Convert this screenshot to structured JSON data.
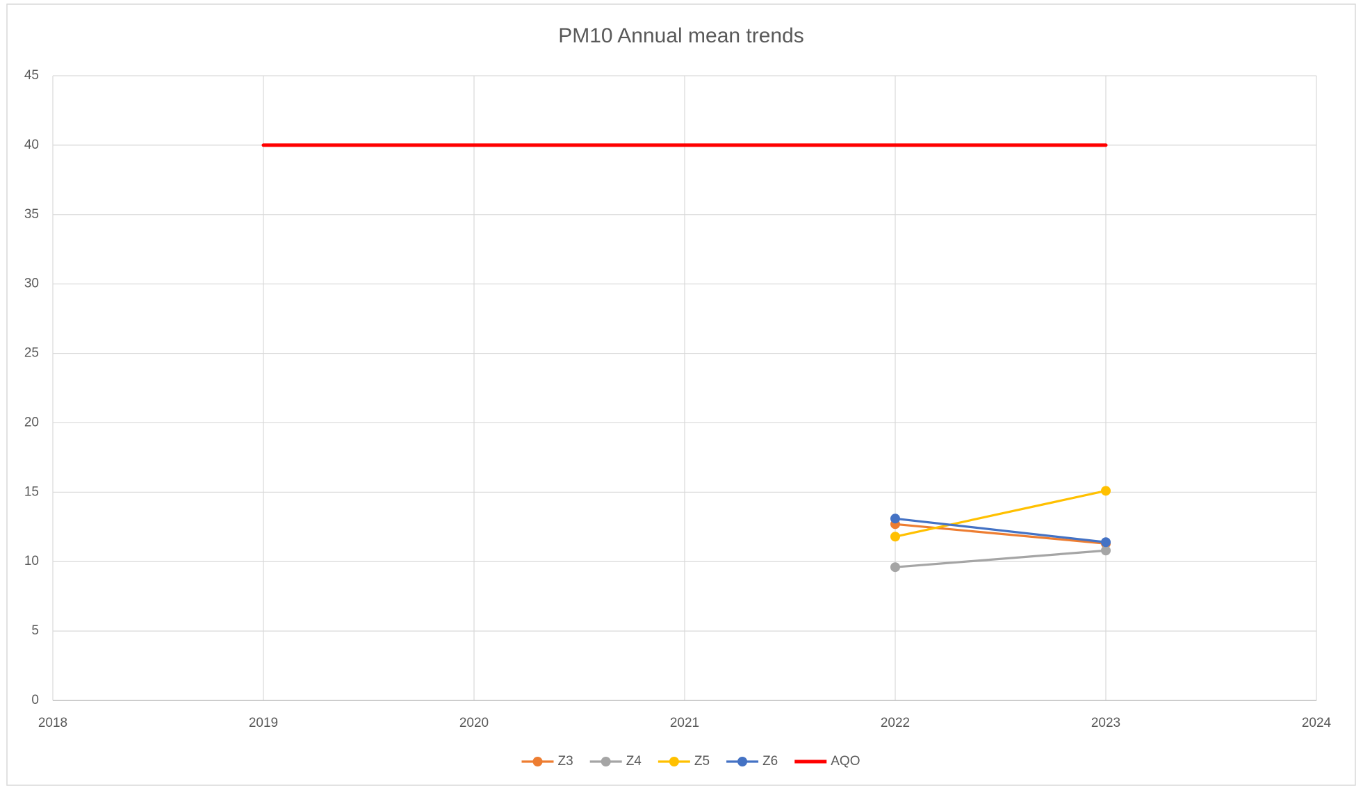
{
  "chart_data": {
    "type": "line",
    "title": "PM10 Annual mean trends",
    "x": [
      2019,
      2020,
      2021,
      2022,
      2023
    ],
    "series": [
      {
        "name": "Z3",
        "color": "#ed7d31",
        "marker": true,
        "values": [
          null,
          null,
          null,
          12.7,
          11.3
        ]
      },
      {
        "name": "Z4",
        "color": "#a5a5a5",
        "marker": true,
        "values": [
          null,
          null,
          null,
          9.6,
          10.8
        ]
      },
      {
        "name": "Z5",
        "color": "#ffc000",
        "marker": true,
        "values": [
          null,
          null,
          null,
          11.8,
          15.1
        ]
      },
      {
        "name": "Z6",
        "color": "#4472c4",
        "marker": true,
        "values": [
          null,
          null,
          null,
          13.1,
          11.4
        ]
      },
      {
        "name": "AQO",
        "color": "#ff0000",
        "marker": false,
        "values": [
          40,
          40,
          40,
          40,
          40
        ]
      }
    ],
    "xlim": [
      2018,
      2024
    ],
    "xticks": [
      2018,
      2019,
      2020,
      2021,
      2022,
      2023,
      2024
    ],
    "ylim": [
      0,
      45
    ],
    "yticks": [
      0,
      5,
      10,
      15,
      20,
      25,
      30,
      35,
      40,
      45
    ],
    "grid": true,
    "legend": "bottom"
  }
}
